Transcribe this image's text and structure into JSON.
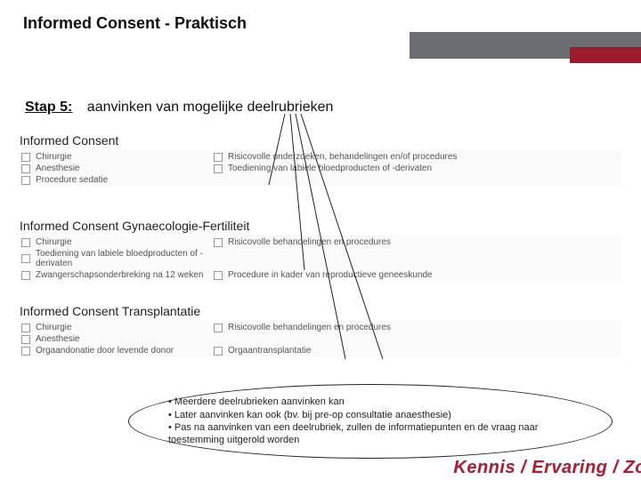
{
  "colors": {
    "accent_red": "#9d1b2e",
    "accent_gray": "#6a6e71",
    "text": "#111111",
    "muted_text": "#555555",
    "box_bg": "#fafafa",
    "checkbox_border": "#999999",
    "oval_border": "#222222",
    "footer_red": "#a61f34"
  },
  "title": "Informed Consent - Praktisch",
  "step": {
    "label": "Stap 5:",
    "description": "aanvinken van mogelijke deelrubrieken"
  },
  "sections": [
    {
      "label": "Informed Consent",
      "rows": [
        {
          "left": "Chirurgie",
          "right": "Risicovolle onderzoeken, behandelingen en/of procedures"
        },
        {
          "left": "Anesthesie",
          "right": "Toediening van labiele bloedproducten of -derivaten"
        },
        {
          "left": "Procedure sedatie",
          "right": ""
        }
      ]
    },
    {
      "label": "Informed Consent Gynaecologie-Fertiliteit",
      "rows": [
        {
          "left": "Chirurgie",
          "right": "Risicovolle behandelingen en procedures"
        },
        {
          "left": "Toediening van labiele bloedproducten of -derivaten",
          "right": ""
        },
        {
          "left": "Zwangerschapsonderbreking na 12 weken",
          "right": "Procedure in kader van reproductieve geneeskunde"
        }
      ]
    },
    {
      "label": "Informed Consent Transplantatie",
      "rows": [
        {
          "left": "Chirurgie",
          "right": "Risicovolle behandelingen en procedures"
        },
        {
          "left": "Anesthesie",
          "right": ""
        },
        {
          "left": "Orgaandonatie door levende donor",
          "right": "Orgaantransplantatie"
        }
      ]
    }
  ],
  "lines": {
    "stroke": "#222222",
    "stroke_width": 1,
    "paths": [
      "M 320 0 L 302 80",
      "M 326 0 L 342 176",
      "M 332 0 L 388 276",
      "M 338 0 L 430 276"
    ]
  },
  "notes": {
    "items": [
      "Meerdere deelrubrieken aanvinken kan",
      "Later aanvinken kan ook (bv. bij pre-op consultatie anaesthesie)",
      "Pas na aanvinken van een deelrubriek, zullen de informatiepunten en de vraag naar toestemming uitgerold worden"
    ]
  },
  "footer": "Kennis / Ervaring / Zo"
}
